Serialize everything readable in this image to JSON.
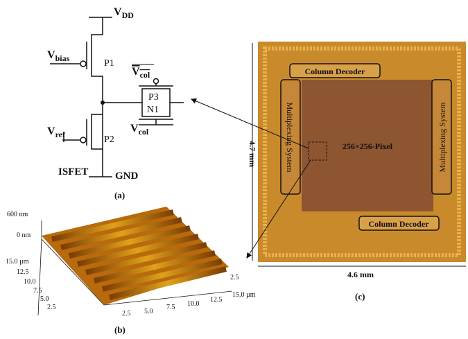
{
  "circuit": {
    "vdd": {
      "base": "V",
      "sub": "DD"
    },
    "vbias": {
      "base": "V",
      "sub": "bias"
    },
    "p1": "P1",
    "vcol_bar": {
      "base": "V",
      "sub": "col"
    },
    "p3": "P3",
    "n1": "N1",
    "vcol": {
      "base": "V",
      "sub": "col"
    },
    "vref": {
      "base": "V",
      "sub": "ref"
    },
    "p2": "P2",
    "isfet": "ISFET",
    "gnd": "GND",
    "caption": "(a)"
  },
  "afm": {
    "z_labels": [
      "600 nm",
      "0 nm"
    ],
    "y_ticks": [
      "15.0 µm",
      "12.5",
      "10.0",
      "7.5",
      "5.0",
      "2.5"
    ],
    "x_ticks": [
      "2.5",
      "5.0",
      "7.5",
      "10.0",
      "12.5",
      "15.0 µm"
    ],
    "corner_tick": "2.5",
    "caption": "(b)"
  },
  "chip": {
    "top_decoder": "Column Decoder",
    "bottom_decoder": "Column Decoder",
    "left_mux": "Multiplexing System",
    "right_mux": "Multiplexing System",
    "array": "256×256-Pixel",
    "height": "4.7 mm",
    "width": "4.6 mm",
    "caption": "(c)"
  }
}
